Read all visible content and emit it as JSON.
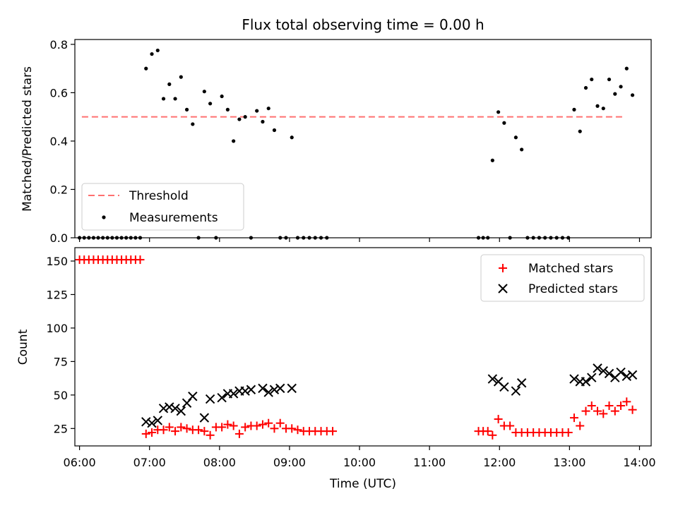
{
  "figure": {
    "title": "Flux total observing time = 0.00 h",
    "xlabel": "Time (UTC)",
    "x_ticks": [
      "06:00",
      "07:00",
      "08:00",
      "09:00",
      "10:00",
      "11:00",
      "12:00",
      "13:00",
      "14:00"
    ]
  },
  "chart_data": [
    {
      "type": "scatter",
      "title": "Flux total observing time = 0.00 h",
      "xlabel": "",
      "ylabel": "Matched/Predicted stars",
      "xlim": [
        "05:56",
        "14:10"
      ],
      "ylim": [
        0,
        0.82
      ],
      "y_ticks": [
        "0.0",
        "0.2",
        "0.4",
        "0.6",
        "0.8"
      ],
      "legend": "lower-left",
      "threshold": {
        "name": "Threshold",
        "value": 0.5,
        "x_range": [
          "06:02",
          "13:48"
        ],
        "color": "#ff7070"
      },
      "series": [
        {
          "name": "Measurements",
          "color": "#000000",
          "points": [
            [
              "06:00",
              0
            ],
            [
              "06:04",
              0
            ],
            [
              "06:08",
              0
            ],
            [
              "06:12",
              0
            ],
            [
              "06:16",
              0
            ],
            [
              "06:20",
              0
            ],
            [
              "06:24",
              0
            ],
            [
              "06:28",
              0
            ],
            [
              "06:32",
              0
            ],
            [
              "06:36",
              0
            ],
            [
              "06:40",
              0
            ],
            [
              "06:44",
              0
            ],
            [
              "06:48",
              0
            ],
            [
              "06:52",
              0
            ],
            [
              "06:57",
              0.7
            ],
            [
              "07:02",
              0.76
            ],
            [
              "07:07",
              0.775
            ],
            [
              "07:12",
              0.575
            ],
            [
              "07:17",
              0.635
            ],
            [
              "07:22",
              0.575
            ],
            [
              "07:27",
              0.665
            ],
            [
              "07:32",
              0.53
            ],
            [
              "07:37",
              0.47
            ],
            [
              "07:42",
              0
            ],
            [
              "07:47",
              0.605
            ],
            [
              "07:52",
              0.555
            ],
            [
              "07:57",
              0
            ],
            [
              "08:02",
              0.585
            ],
            [
              "08:07",
              0.53
            ],
            [
              "08:12",
              0.4
            ],
            [
              "08:17",
              0.49
            ],
            [
              "08:22",
              0.5
            ],
            [
              "08:27",
              0
            ],
            [
              "08:32",
              0.525
            ],
            [
              "08:37",
              0.48
            ],
            [
              "08:42",
              0.535
            ],
            [
              "08:47",
              0.445
            ],
            [
              "08:52",
              0
            ],
            [
              "08:57",
              0
            ],
            [
              "09:02",
              0.415
            ],
            [
              "09:07",
              0
            ],
            [
              "09:12",
              0
            ],
            [
              "09:17",
              0
            ],
            [
              "09:22",
              0
            ],
            [
              "09:27",
              0
            ],
            [
              "09:32",
              0
            ],
            [
              "11:42",
              0
            ],
            [
              "11:46",
              0
            ],
            [
              "11:50",
              0
            ],
            [
              "11:54",
              0.32
            ],
            [
              "11:59",
              0.52
            ],
            [
              "12:04",
              0.475
            ],
            [
              "12:09",
              0
            ],
            [
              "12:14",
              0.415
            ],
            [
              "12:19",
              0.365
            ],
            [
              "12:24",
              0
            ],
            [
              "12:29",
              0
            ],
            [
              "12:34",
              0
            ],
            [
              "12:39",
              0
            ],
            [
              "12:44",
              0
            ],
            [
              "12:49",
              0
            ],
            [
              "12:54",
              0
            ],
            [
              "12:59",
              0
            ],
            [
              "13:04",
              0.53
            ],
            [
              "13:09",
              0.44
            ],
            [
              "13:14",
              0.62
            ],
            [
              "13:19",
              0.655
            ],
            [
              "13:24",
              0.545
            ],
            [
              "13:29",
              0.535
            ],
            [
              "13:34",
              0.655
            ],
            [
              "13:39",
              0.595
            ],
            [
              "13:44",
              0.625
            ],
            [
              "13:49",
              0.7
            ],
            [
              "13:54",
              0.59
            ]
          ]
        }
      ]
    },
    {
      "type": "scatter",
      "xlabel": "Time (UTC)",
      "ylabel": "Count",
      "xlim": [
        "05:56",
        "14:10"
      ],
      "ylim": [
        12,
        160
      ],
      "y_ticks": [
        "25",
        "50",
        "75",
        "100",
        "125",
        "150"
      ],
      "legend": "top-right",
      "series": [
        {
          "name": "Matched stars",
          "color": "#ff0000",
          "marker": "+",
          "points": [
            [
              "06:00",
              151
            ],
            [
              "06:04",
              151
            ],
            [
              "06:08",
              151
            ],
            [
              "06:12",
              151
            ],
            [
              "06:16",
              151
            ],
            [
              "06:20",
              151
            ],
            [
              "06:24",
              151
            ],
            [
              "06:28",
              151
            ],
            [
              "06:32",
              151
            ],
            [
              "06:36",
              151
            ],
            [
              "06:40",
              151
            ],
            [
              "06:44",
              151
            ],
            [
              "06:48",
              151
            ],
            [
              "06:52",
              151
            ],
            [
              "06:57",
              21
            ],
            [
              "07:02",
              22
            ],
            [
              "07:07",
              24
            ],
            [
              "07:12",
              24
            ],
            [
              "07:17",
              26
            ],
            [
              "07:22",
              23
            ],
            [
              "07:27",
              26
            ],
            [
              "07:32",
              25
            ],
            [
              "07:37",
              24
            ],
            [
              "07:42",
              24
            ],
            [
              "07:47",
              23
            ],
            [
              "07:52",
              20
            ],
            [
              "07:57",
              26
            ],
            [
              "08:02",
              26
            ],
            [
              "08:07",
              28
            ],
            [
              "08:12",
              27
            ],
            [
              "08:17",
              21
            ],
            [
              "08:22",
              26
            ],
            [
              "08:27",
              27
            ],
            [
              "08:32",
              27
            ],
            [
              "08:37",
              28
            ],
            [
              "08:42",
              29
            ],
            [
              "08:47",
              25
            ],
            [
              "08:52",
              29
            ],
            [
              "08:57",
              25
            ],
            [
              "09:02",
              25
            ],
            [
              "09:07",
              24
            ],
            [
              "09:12",
              23
            ],
            [
              "09:17",
              23
            ],
            [
              "09:22",
              23
            ],
            [
              "09:27",
              23
            ],
            [
              "09:32",
              23
            ],
            [
              "09:37",
              23
            ],
            [
              "11:42",
              23
            ],
            [
              "11:46",
              23
            ],
            [
              "11:50",
              23
            ],
            [
              "11:54",
              20
            ],
            [
              "11:59",
              32
            ],
            [
              "12:04",
              27
            ],
            [
              "12:09",
              27
            ],
            [
              "12:14",
              22
            ],
            [
              "12:19",
              22
            ],
            [
              "12:24",
              22
            ],
            [
              "12:29",
              22
            ],
            [
              "12:34",
              22
            ],
            [
              "12:39",
              22
            ],
            [
              "12:44",
              22
            ],
            [
              "12:49",
              22
            ],
            [
              "12:54",
              22
            ],
            [
              "12:59",
              22
            ],
            [
              "13:04",
              33
            ],
            [
              "13:09",
              27
            ],
            [
              "13:14",
              38
            ],
            [
              "13:19",
              42
            ],
            [
              "13:24",
              38
            ],
            [
              "13:29",
              36
            ],
            [
              "13:34",
              42
            ],
            [
              "13:39",
              38
            ],
            [
              "13:44",
              42
            ],
            [
              "13:49",
              45
            ],
            [
              "13:54",
              39
            ]
          ]
        },
        {
          "name": "Predicted stars",
          "color": "#000000",
          "marker": "x",
          "points": [
            [
              "06:57",
              30
            ],
            [
              "07:02",
              29
            ],
            [
              "07:07",
              31
            ],
            [
              "07:12",
              40
            ],
            [
              "07:17",
              41
            ],
            [
              "07:22",
              40
            ],
            [
              "07:27",
              38
            ],
            [
              "07:32",
              44
            ],
            [
              "07:37",
              49
            ],
            [
              "07:47",
              33
            ],
            [
              "07:52",
              47
            ],
            [
              "08:02",
              48
            ],
            [
              "08:07",
              51
            ],
            [
              "08:12",
              51
            ],
            [
              "08:17",
              53
            ],
            [
              "08:22",
              53
            ],
            [
              "08:27",
              54
            ],
            [
              "08:37",
              55
            ],
            [
              "08:42",
              52
            ],
            [
              "08:47",
              54
            ],
            [
              "08:52",
              55
            ],
            [
              "09:02",
              55
            ],
            [
              "11:54",
              62
            ],
            [
              "11:59",
              60
            ],
            [
              "12:04",
              56
            ],
            [
              "12:14",
              53
            ],
            [
              "12:19",
              59
            ],
            [
              "13:04",
              62
            ],
            [
              "13:09",
              60
            ],
            [
              "13:14",
              60
            ],
            [
              "13:19",
              63
            ],
            [
              "13:24",
              70
            ],
            [
              "13:29",
              68
            ],
            [
              "13:34",
              66
            ],
            [
              "13:39",
              63
            ],
            [
              "13:44",
              67
            ],
            [
              "13:49",
              64
            ],
            [
              "13:54",
              65
            ]
          ]
        }
      ]
    }
  ]
}
